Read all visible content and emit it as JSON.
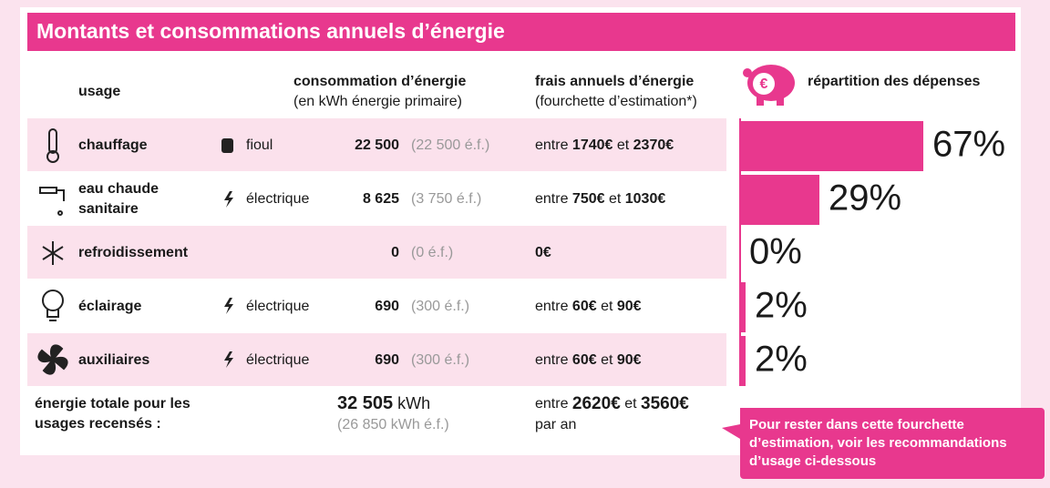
{
  "header": {
    "title": "Montants et consommations annuels d’énergie",
    "col_usage": "usage",
    "col_consumption": "consommation d’énergie",
    "col_consumption_sub": "(en kWh énergie primaire)",
    "col_cost": "frais annuels d’énergie",
    "col_cost_sub": "(fourchette d’estimation*)",
    "col_share": "répartition des dépenses"
  },
  "rows": [
    {
      "usage": [
        "chauffage"
      ],
      "energy": "fioul",
      "consumption": "22 500",
      "ef": "(22 500 é.f.)",
      "cost": [
        "entre ",
        "1740€",
        " et ",
        "2370€"
      ],
      "share": 67,
      "share_label": "67%"
    },
    {
      "usage": [
        "eau chaude",
        "sanitaire"
      ],
      "energy": "électrique",
      "consumption": "8 625",
      "ef": "(3 750 é.f.)",
      "cost": [
        "entre ",
        "750€",
        " et ",
        "1030€"
      ],
      "share": 29,
      "share_label": "29%"
    },
    {
      "usage": [
        "refroidissement"
      ],
      "consumption": "0",
      "ef": "(0 é.f.)",
      "cost": [
        "0€"
      ],
      "share": 0,
      "share_label": "0%"
    },
    {
      "usage": [
        "éclairage"
      ],
      "energy": "électrique",
      "consumption": "690",
      "ef": "(300 é.f.)",
      "cost": [
        "entre ",
        "60€",
        " et ",
        "90€"
      ],
      "share": 2,
      "share_label": "2%"
    },
    {
      "usage": [
        "auxiliaires"
      ],
      "energy": "électrique",
      "consumption": "690",
      "ef": "(300 é.f.)",
      "cost": [
        "entre ",
        "60€",
        " et ",
        "90€"
      ],
      "share": 2,
      "share_label": "2%"
    }
  ],
  "total": {
    "label": [
      "énergie totale pour les",
      "usages recensés :"
    ],
    "consumption": "32 505",
    "unit": " kWh",
    "ef": "(26 850 kWh é.f.)",
    "cost": [
      "entre ",
      "2620€",
      " et ",
      "3560€"
    ],
    "period": "par an"
  },
  "callout": [
    "Pour rester dans cette fourchette",
    "d’estimation, voir les recommandations",
    "d’usage ci-dessous"
  ]
}
